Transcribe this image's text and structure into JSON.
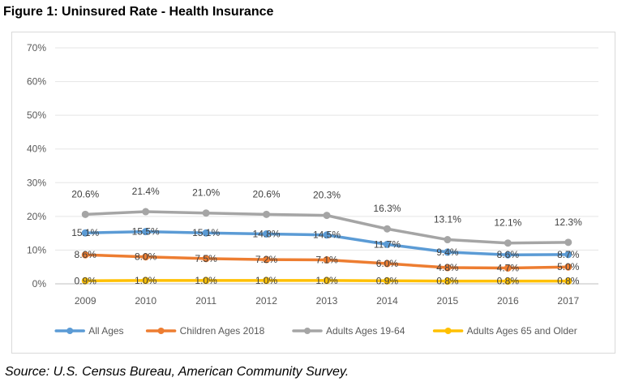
{
  "figure": {
    "title": "Figure 1: Uninsured Rate - Health Insurance",
    "source": "Source: U.S. Census Bureau, American Community Survey."
  },
  "chart_data": {
    "type": "line",
    "categories": [
      "2009",
      "2010",
      "2011",
      "2012",
      "2013",
      "2014",
      "2015",
      "2016",
      "2017"
    ],
    "ylim": [
      0,
      70
    ],
    "yticks": [
      0,
      10,
      20,
      30,
      40,
      50,
      60,
      70
    ],
    "ytick_labels": [
      "0%",
      "10%",
      "20%",
      "30%",
      "40%",
      "50%",
      "60%",
      "70%"
    ],
    "grid": true,
    "legend_position": "bottom",
    "series": [
      {
        "name": "All Ages",
        "color": "#5b9bd5",
        "values": [
          15.1,
          15.5,
          15.1,
          14.8,
          14.5,
          11.7,
          9.4,
          8.6,
          8.7
        ],
        "labels": [
          "15.1%",
          "15.5%",
          "15.1%",
          "14.8%",
          "14.5%",
          "11.7%",
          "9.4%",
          "8.6%",
          "8.7%"
        ]
      },
      {
        "name": "Children Ages 2018",
        "color": "#ed7d31",
        "values": [
          8.6,
          8.0,
          7.5,
          7.2,
          7.1,
          6.0,
          4.8,
          4.7,
          5.0
        ],
        "labels": [
          "8.6%",
          "8.0%",
          "7.5%",
          "7.2%",
          "7.1%",
          "6.0%",
          "4.8%",
          "4.7%",
          "5.0%"
        ]
      },
      {
        "name": "Adults Ages 19-64",
        "color": "#a5a5a5",
        "values": [
          20.6,
          21.4,
          21.0,
          20.6,
          20.3,
          16.3,
          13.1,
          12.1,
          12.3
        ],
        "labels": [
          "20.6%",
          "21.4%",
          "21.0%",
          "20.6%",
          "20.3%",
          "16.3%",
          "13.1%",
          "12.1%",
          "12.3%"
        ]
      },
      {
        "name": "Adults Ages 65 and Older",
        "color": "#ffc000",
        "values": [
          0.9,
          1.0,
          1.0,
          1.0,
          1.0,
          0.9,
          0.8,
          0.8,
          0.8
        ],
        "labels": [
          "0.9%",
          "1.0%",
          "1.0%",
          "1.0%",
          "1.0%",
          "0.9%",
          "0.8%",
          "0.8%",
          "0.8%"
        ]
      }
    ]
  }
}
